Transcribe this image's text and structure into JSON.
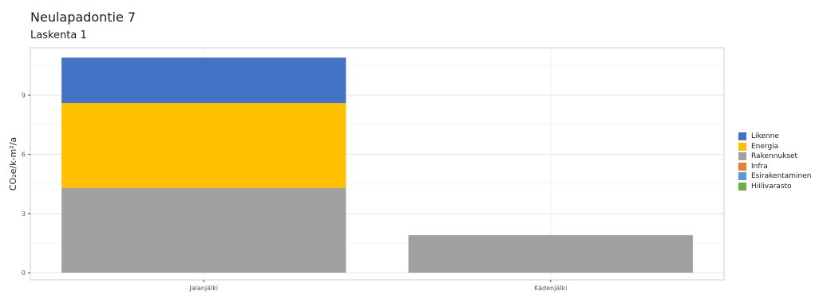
{
  "header": {
    "title": "Neulapadontie 7",
    "subtitle": "Laskenta 1"
  },
  "chart_data": {
    "type": "bar",
    "stacked": true,
    "categories": [
      "Jalanjälki",
      "Kädenjälki"
    ],
    "ylabel": "CO₂e/k-m²/a",
    "xlabel": "",
    "ylim": [
      0,
      11
    ],
    "yticks": [
      0,
      3,
      6,
      9
    ],
    "ytick_labels": [
      "0",
      "3",
      "6",
      "9"
    ],
    "grid": true,
    "legend_position": "right",
    "series": [
      {
        "name": "Rakennukset",
        "color": "#a0a0a0",
        "values": [
          4.3,
          1.9
        ]
      },
      {
        "name": "Energia",
        "color": "#ffc000",
        "values": [
          4.3,
          0
        ]
      },
      {
        "name": "Likenne",
        "color": "#4472c4",
        "values": [
          2.3,
          0
        ]
      },
      {
        "name": "Infra",
        "color": "#ed7d31",
        "values": [
          0,
          0
        ]
      },
      {
        "name": "Esirakentaminen",
        "color": "#5b9bd5",
        "values": [
          0,
          0
        ]
      },
      {
        "name": "Hiilivarasto",
        "color": "#70ad47",
        "values": [
          0,
          0
        ]
      }
    ],
    "legend": [
      {
        "name": "Likenne",
        "color": "#4472c4"
      },
      {
        "name": "Energia",
        "color": "#ffc000"
      },
      {
        "name": "Rakennukset",
        "color": "#a0a0a0"
      },
      {
        "name": "Infra",
        "color": "#ed7d31"
      },
      {
        "name": "Esirakentaminen",
        "color": "#5b9bd5"
      },
      {
        "name": "Hiilivarasto",
        "color": "#70ad47"
      }
    ]
  }
}
